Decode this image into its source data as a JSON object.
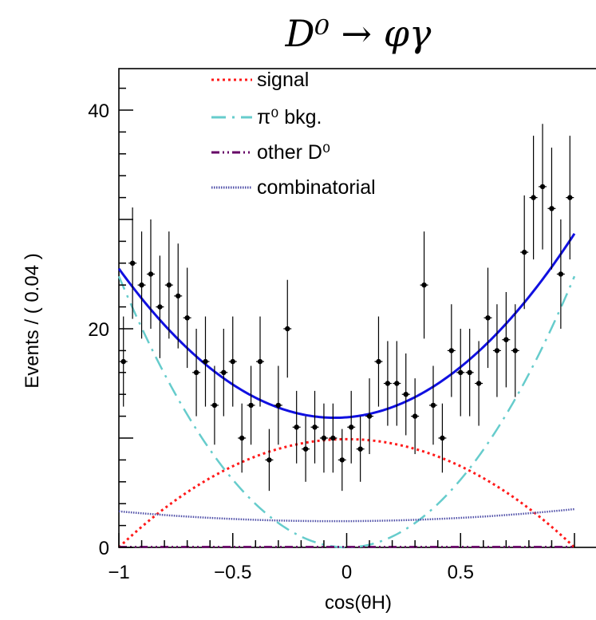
{
  "chart_data": {
    "type": "scatter",
    "title": "D⁰ → φγ",
    "xlabel": "cos(θH)",
    "ylabel": "Events / ( 0.04 )",
    "xlim": [
      -1,
      1
    ],
    "ylim": [
      0,
      40
    ],
    "x_ticks": [
      "−1",
      "−0.5",
      "0",
      "0.5"
    ],
    "x_tick_values": [
      -1,
      -0.5,
      0,
      0.5
    ],
    "y_ticks": [
      "0",
      "20",
      "40"
    ],
    "y_tick_values": [
      0,
      20,
      40
    ],
    "legend": {
      "placement": "top-left",
      "entries": [
        {
          "key": "signal",
          "label": "signal",
          "color": "#ff1a1a",
          "style": "dotted"
        },
        {
          "key": "pi0",
          "label": "π⁰ bkg.",
          "color": "#66cccc",
          "style": "dashdot"
        },
        {
          "key": "otherD0",
          "label": "other D⁰",
          "color": "#660066",
          "style": "dashdotdot"
        },
        {
          "key": "comb",
          "label": "combinatorial",
          "color": "#5050a8",
          "style": "dense-dotted"
        }
      ]
    },
    "data_points": {
      "name": "data",
      "x": [
        -0.98,
        -0.94,
        -0.9,
        -0.86,
        -0.82,
        -0.78,
        -0.74,
        -0.7,
        -0.66,
        -0.62,
        -0.58,
        -0.54,
        -0.5,
        -0.46,
        -0.42,
        -0.38,
        -0.34,
        -0.3,
        -0.26,
        -0.22,
        -0.18,
        -0.14,
        -0.1,
        -0.06,
        -0.02,
        0.02,
        0.06,
        0.1,
        0.14,
        0.18,
        0.22,
        0.26,
        0.3,
        0.34,
        0.38,
        0.42,
        0.46,
        0.5,
        0.54,
        0.58,
        0.62,
        0.66,
        0.7,
        0.74,
        0.78,
        0.82,
        0.86,
        0.9,
        0.94,
        0.98
      ],
      "y": [
        17,
        26,
        24,
        25,
        22,
        24,
        23,
        21,
        16,
        17,
        13,
        16,
        17,
        10,
        13,
        17,
        8,
        13,
        20,
        11,
        9,
        11,
        10,
        10,
        8,
        11,
        9,
        12,
        17,
        15,
        15,
        14,
        12,
        24,
        13,
        10,
        18,
        16,
        16,
        15,
        21,
        18,
        19,
        18,
        27,
        32,
        33,
        31,
        25,
        32
      ]
    },
    "curves": [
      {
        "name": "total fit",
        "color": "#1010e0",
        "style": "solid"
      },
      {
        "name": "signal",
        "color": "#ff1a1a",
        "style": "dotted"
      },
      {
        "name": "π⁰ bkg.",
        "color": "#66cccc",
        "style": "dashdot"
      },
      {
        "name": "other D⁰",
        "color": "#660066",
        "style": "dashdotdot"
      },
      {
        "name": "combinatorial",
        "color": "#5050a8",
        "style": "dense-dotted"
      }
    ]
  }
}
